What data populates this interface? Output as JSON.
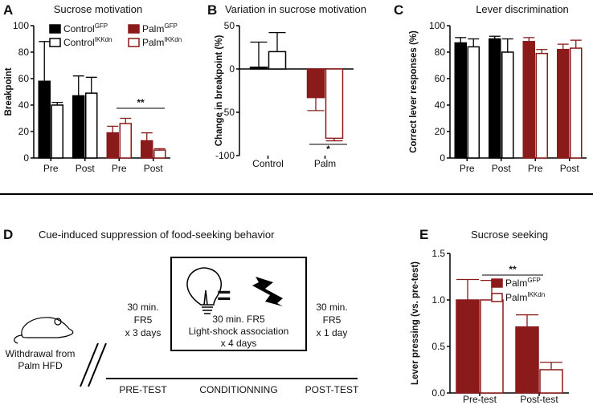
{
  "chart_data": [
    {
      "type": "bar",
      "panel": "A",
      "title": "Sucrose motivation",
      "ylabel": "Breakpoint",
      "categories": [
        "Pre",
        "Post",
        "Pre",
        "Post"
      ],
      "series": [
        {
          "name": "Control",
          "sup": "GFP",
          "color": "#000000",
          "style": "filled",
          "values": [
            58,
            47,
            null,
            null
          ],
          "errors": [
            30,
            15,
            null,
            null
          ]
        },
        {
          "name": "Control",
          "sup": "IKKdn",
          "color": "#000000",
          "style": "open",
          "values": [
            40,
            49,
            null,
            null
          ],
          "errors": [
            2,
            12,
            null,
            null
          ]
        },
        {
          "name": "Palm",
          "sup": "GFP",
          "color": "#8b1a1a",
          "style": "filled",
          "values": [
            null,
            null,
            19,
            13
          ],
          "errors": [
            null,
            null,
            5,
            6
          ]
        },
        {
          "name": "Palm",
          "sup": "IKKdn",
          "color": "#8b1a1a",
          "style": "open",
          "values": [
            null,
            null,
            26,
            6
          ],
          "errors": [
            null,
            null,
            4,
            1
          ]
        }
      ],
      "ylim": [
        0,
        100
      ],
      "yticks": [
        0,
        20,
        40,
        60,
        80,
        100
      ],
      "annotations": [
        "**"
      ]
    },
    {
      "type": "bar",
      "panel": "B",
      "title": "Variation in sucrose motivation",
      "ylabel": "Change in breakpoint (%)",
      "categories": [
        "Control",
        "Palm"
      ],
      "series": [
        {
          "colors": [
            "#000000",
            "#8b1a1a"
          ],
          "style": "filled",
          "values": [
            2,
            -33
          ],
          "errors": [
            29,
            15
          ]
        },
        {
          "colors": [
            "#000000",
            "#8b1a1a"
          ],
          "style": "open",
          "values": [
            20,
            -80
          ],
          "errors": [
            22,
            3
          ]
        }
      ],
      "ylim": [
        -100,
        50
      ],
      "yticks": [
        -100,
        -50,
        0,
        50
      ],
      "annotations": [
        "*"
      ]
    },
    {
      "type": "bar",
      "panel": "C",
      "title": "Lever discrimination",
      "ylabel": "Correct lever responses (%)",
      "categories": [
        "Pre",
        "Post",
        "Pre",
        "Post"
      ],
      "series": [
        {
          "color": "#000000",
          "style": "filled",
          "values": [
            87,
            90,
            null,
            null
          ],
          "errors": [
            4,
            2,
            null,
            null
          ]
        },
        {
          "color": "#000000",
          "style": "open",
          "values": [
            84,
            80,
            null,
            null
          ],
          "errors": [
            6,
            10,
            null,
            null
          ]
        },
        {
          "color": "#8b1a1a",
          "style": "filled",
          "values": [
            null,
            null,
            88,
            82
          ],
          "errors": [
            null,
            null,
            3,
            4
          ]
        },
        {
          "color": "#8b1a1a",
          "style": "open",
          "values": [
            null,
            null,
            79,
            83
          ],
          "errors": [
            null,
            null,
            3,
            6
          ]
        }
      ],
      "ylim": [
        0,
        100
      ],
      "yticks": [
        0,
        20,
        40,
        60,
        80,
        100
      ]
    },
    {
      "type": "bar",
      "panel": "E",
      "title": "Sucrose seeking",
      "ylabel": "Lever pressing (vs. pre-test)",
      "categories": [
        "Pre-test",
        "Post-test"
      ],
      "series": [
        {
          "name": "Palm",
          "sup": "GFP",
          "color": "#8b1a1a",
          "style": "filled",
          "values": [
            1.0,
            0.71
          ],
          "errors": [
            0.22,
            0.13
          ]
        },
        {
          "name": "Palm",
          "sup": "IKKdn",
          "color": "#8b1a1a",
          "style": "open",
          "values": [
            1.0,
            0.25
          ],
          "errors": [
            0.21,
            0.08
          ]
        }
      ],
      "ylim": [
        0,
        1.5
      ],
      "yticks": [
        {
          "value": 0,
          "label": "0.0"
        },
        0.5,
        {
          "value": 1,
          "label": "1.0"
        },
        1.5
      ],
      "annotations": [
        "**"
      ]
    }
  ],
  "diagram": {
    "panel": "D",
    "title": "Cue-induced suppression of food-seeking behavior",
    "withdrawal": [
      "Withdrawal from",
      "Palm HFD"
    ],
    "pre": [
      "30 min.",
      "FR5",
      "x 3 days"
    ],
    "conditioning": [
      "30 min. FR5",
      "Light-shock association",
      "x 4 days"
    ],
    "post": [
      "30 min.",
      "FR5",
      "x 1 day"
    ],
    "equals": "=",
    "phases": [
      "PRE-TEST",
      "CONDITIONNING",
      "POST-TEST"
    ]
  }
}
